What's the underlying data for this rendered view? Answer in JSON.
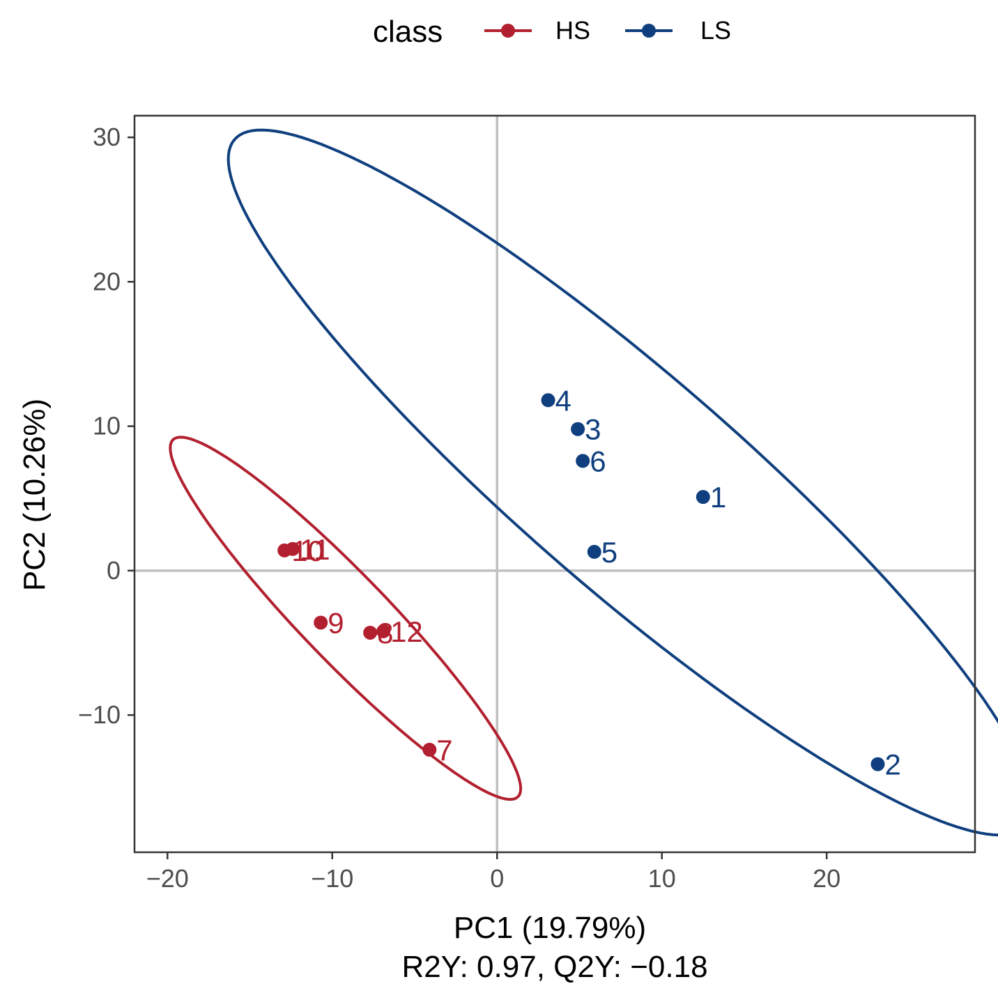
{
  "chart_data": {
    "type": "scatter",
    "title": "",
    "xlabel": "PC1 (19.79%)",
    "subtitle": "R2Y: 0.97, Q2Y: −0.18",
    "ylabel": "PC2 (10.26%)",
    "xlim": [
      -22,
      29
    ],
    "ylim": [
      -19.5,
      31.5
    ],
    "xticks": [
      -20,
      -10,
      0,
      10,
      20
    ],
    "xtick_labels": [
      "−20",
      "−10",
      "0",
      "10",
      "20"
    ],
    "yticks": [
      -10,
      0,
      10,
      20,
      30
    ],
    "ytick_labels": [
      "−10",
      "0",
      "10",
      "20",
      "30"
    ],
    "reference_lines": {
      "x": 0,
      "y": 0
    },
    "legend": {
      "title": "class",
      "position": "top",
      "entries": [
        {
          "label": "HS",
          "color": "#b2202f"
        },
        {
          "label": "LS",
          "color": "#0f3f7e"
        }
      ]
    },
    "series": [
      {
        "name": "HS",
        "color": "#b2202f",
        "points": [
          {
            "label": "7",
            "x": -4.1,
            "y": -12.4
          },
          {
            "label": "8",
            "x": -7.7,
            "y": -4.3
          },
          {
            "label": "9",
            "x": -10.7,
            "y": -3.6
          },
          {
            "label": "10",
            "x": -12.9,
            "y": 1.4
          },
          {
            "label": "11",
            "x": -12.4,
            "y": 1.5
          },
          {
            "label": "12",
            "x": -6.9,
            "y": -4.2
          }
        ],
        "ellipse": {
          "center": [
            -9.2,
            -3.3
          ],
          "semi_major": 16.2,
          "semi_minor": 2.8,
          "angle_deg": -50
        }
      },
      {
        "name": "LS",
        "color": "#0f3f7e",
        "points": [
          {
            "label": "1",
            "x": 12.5,
            "y": 5.1
          },
          {
            "label": "2",
            "x": 23.1,
            "y": -13.4
          },
          {
            "label": "3",
            "x": 4.9,
            "y": 9.8
          },
          {
            "label": "4",
            "x": 3.1,
            "y": 11.8
          },
          {
            "label": "5",
            "x": 5.9,
            "y": 1.3
          },
          {
            "label": "6",
            "x": 5.2,
            "y": 7.6
          }
        ],
        "ellipse": {
          "center": [
            8.1,
            6.1
          ],
          "semi_major": 33.8,
          "semi_minor": 7.0,
          "angle_deg": -45
        }
      }
    ]
  }
}
